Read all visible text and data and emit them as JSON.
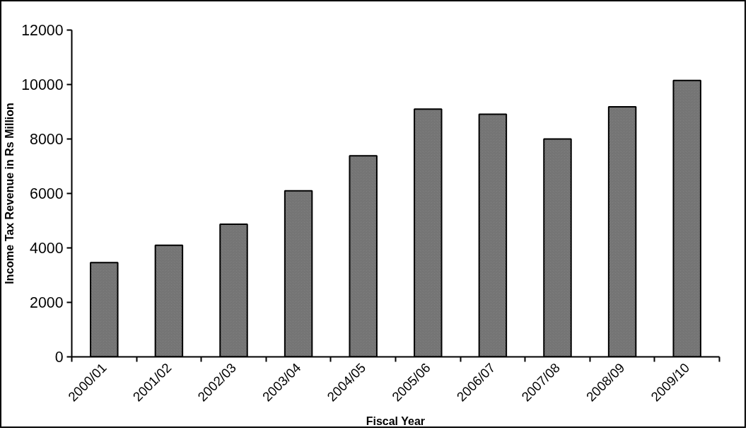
{
  "chart_data": {
    "type": "bar",
    "xlabel": "Fiscal Year",
    "ylabel": "Income Tax Revenue in Rs Million",
    "categories": [
      "2000/01",
      "2001/02",
      "2002/03",
      "2003/04",
      "2004/05",
      "2005/06",
      "2006/07",
      "2007/08",
      "2008/09",
      "2009/10"
    ],
    "values": [
      3460,
      4100,
      4870,
      6100,
      7380,
      9100,
      8910,
      8000,
      9180,
      10150
    ],
    "color": "#808080",
    "ylim": [
      0,
      12000
    ],
    "yticks": [
      0,
      2000,
      4000,
      6000,
      8000,
      10000,
      12000
    ],
    "grid": false
  }
}
